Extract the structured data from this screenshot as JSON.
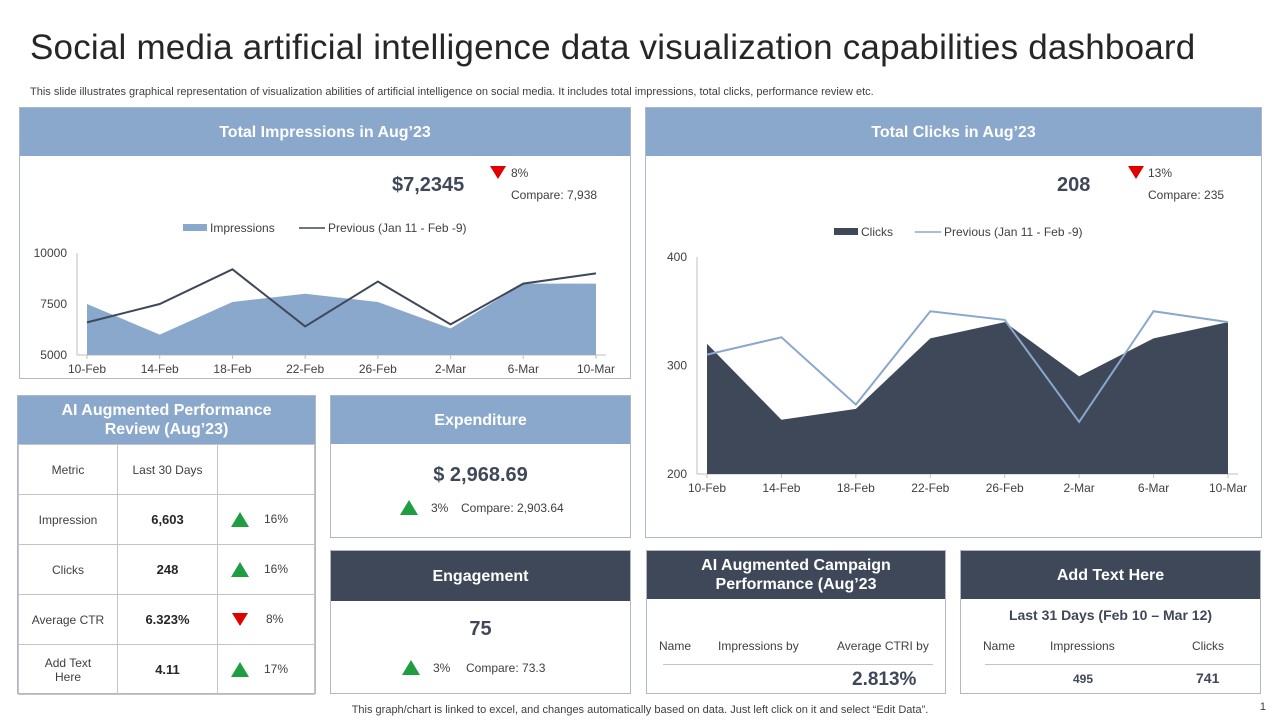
{
  "title": "Social media artificial intelligence data visualization capabilities dashboard",
  "subtitle": "This slide illustrates graphical representation of visualization abilities of artificial intelligence on social media. It includes total impressions, total clicks, performance review etc.",
  "impressions": {
    "header": "Total Impressions in Aug’23",
    "value": "$7,2345",
    "change": "8%",
    "compare": "Compare: 7,938"
  },
  "clicks": {
    "header": "Total Clicks in Aug’23",
    "value": "208",
    "change": "13%",
    "compare": "Compare: 235"
  },
  "chart_data": [
    {
      "type": "area",
      "series": [
        {
          "name": "Impressions",
          "values": [
            7500,
            6000,
            7600,
            8000,
            7600,
            6300,
            8500,
            8500
          ]
        },
        {
          "name": "Previous (Jan 11 - Feb -9)",
          "values": [
            6600,
            7500,
            9200,
            6400,
            8600,
            6500,
            8500,
            9000
          ]
        }
      ],
      "categories": [
        "10-Feb",
        "14-Feb",
        "18-Feb",
        "22-Feb",
        "26-Feb",
        "2-Mar",
        "6-Mar",
        "10-Mar"
      ],
      "ylim": [
        5000,
        10000
      ],
      "yticks": [
        "10000",
        "7500",
        "5000"
      ],
      "legend": "top"
    },
    {
      "type": "area",
      "series": [
        {
          "name": "Clicks",
          "values": [
            320,
            250,
            260,
            325,
            340,
            290,
            325,
            340
          ]
        },
        {
          "name": "Previous (Jan 11 - Feb -9)",
          "values": [
            310,
            326,
            264,
            350,
            342,
            248,
            350,
            340
          ]
        }
      ],
      "categories": [
        "10-Feb",
        "14-Feb",
        "18-Feb",
        "22-Feb",
        "26-Feb",
        "2-Mar",
        "6-Mar",
        "10-Mar"
      ],
      "ylim": [
        200,
        400
      ],
      "yticks": [
        "400",
        "300",
        "200"
      ],
      "legend": "top"
    }
  ],
  "perf": {
    "header": "AI Augmented Performance Review (Aug’23)",
    "col_metric": "Metric",
    "col_last30": "Last 30 Days",
    "rows": [
      {
        "metric": "Impression",
        "value": "6,603",
        "change": "16%"
      },
      {
        "metric": "Clicks",
        "value": "248",
        "change": "16%"
      },
      {
        "metric": "Average CTR",
        "value": "6.323%",
        "change": "8%"
      },
      {
        "metric": "Add Text Here",
        "value": "4.11",
        "change": "17%"
      }
    ]
  },
  "expenditure": {
    "header": "Expenditure",
    "value": "$ 2,968.69",
    "change": "3%",
    "compare": "Compare: 2,903.64"
  },
  "engagement": {
    "header": "Engagement",
    "value": "75",
    "change": "3%",
    "compare": "Compare: 73.3"
  },
  "campaign": {
    "header": "AI Augmented Campaign Performance (Aug’23",
    "col_name": "Name",
    "col_impressions": "Impressions by",
    "col_ctr": "Average CTRI by",
    "value": "2.813%"
  },
  "addtext": {
    "header": "Add Text Here",
    "subheader": "Last 31 Days (Feb 10 – Mar 12)",
    "col_name": "Name",
    "col_impressions": "Impressions",
    "col_clicks": "Clicks",
    "impressions_value": "495",
    "clicks_value": "741"
  },
  "footer": "This graph/chart is linked to excel, and changes automatically based on data. Just left click on it and select “Edit Data”.",
  "page_number": "1",
  "colors": {
    "accent_blue": "#8aa7cc",
    "dark": "#3f4859",
    "up": "#1e9e40",
    "down": "#e00000"
  }
}
